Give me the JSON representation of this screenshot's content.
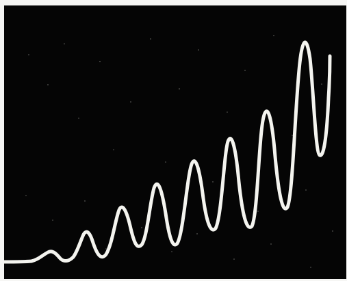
{
  "image": {
    "subject": "oscilloscope-trace",
    "colors": {
      "paper": "#f6f6f4",
      "screen": "#050505",
      "trace": "#f4f4ef",
      "speckle": "#8b8b86"
    }
  },
  "waveform": {
    "type": "growing-oscillation",
    "peak_levels": [
      0.12,
      0.25,
      0.38,
      0.48,
      0.58,
      0.66,
      0.74,
      0.83,
      0.95
    ],
    "trough_levels": [
      0.04,
      0.07,
      0.09,
      0.13,
      0.18,
      0.22,
      0.28,
      0.35,
      0.43
    ]
  }
}
